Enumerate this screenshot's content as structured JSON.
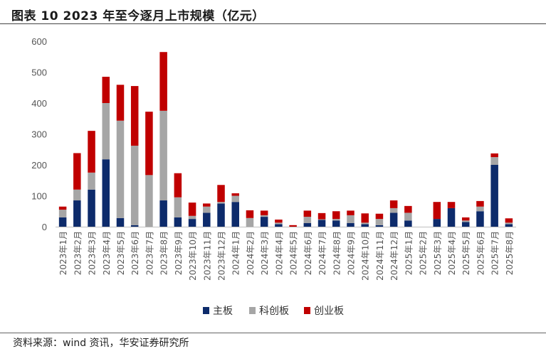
{
  "title": "图表 10 2023 年至今逐月上市规模（亿元）",
  "source": "资料来源：wind 资讯，华安证券研究所",
  "chart_data": {
    "type": "bar",
    "stacked": true,
    "categories": [
      "2023年1月",
      "2023年2月",
      "2023年3月",
      "2023年4月",
      "2023年5月",
      "2023年6月",
      "2023年7月",
      "2023年8月",
      "2023年9月",
      "2023年10月",
      "2023年11月",
      "2023年12月",
      "2024年1月",
      "2024年2月",
      "2024年3月",
      "2024年4月",
      "2024年5月",
      "2024年6月",
      "2024年7月",
      "2024年8月",
      "2024年9月",
      "2024年10月",
      "2024年11月",
      "2024年12月",
      "2025年1月",
      "2025年2月",
      "2025年3月",
      "2025年4月",
      "2025年5月",
      "2025年6月",
      "2025年7月",
      "2025年8月"
    ],
    "series": [
      {
        "name": "主板",
        "color": "#0d2b6b",
        "values": [
          30,
          85,
          120,
          218,
          28,
          5,
          0,
          85,
          30,
          25,
          45,
          75,
          80,
          0,
          32,
          8,
          0,
          12,
          22,
          20,
          12,
          8,
          5,
          45,
          20,
          0,
          25,
          60,
          15,
          50,
          200,
          8
        ]
      },
      {
        "name": "科创板",
        "color": "#a6a6a6",
        "values": [
          25,
          35,
          55,
          182,
          315,
          257,
          167,
          290,
          65,
          10,
          20,
          5,
          20,
          28,
          5,
          5,
          0,
          20,
          2,
          5,
          25,
          5,
          20,
          15,
          25,
          0,
          0,
          0,
          5,
          15,
          25,
          5
        ]
      },
      {
        "name": "创业板",
        "color": "#c00000",
        "values": [
          10,
          118,
          135,
          85,
          116,
          193,
          205,
          190,
          78,
          43,
          10,
          55,
          8,
          25,
          15,
          10,
          5,
          20,
          20,
          25,
          15,
          30,
          17,
          25,
          22,
          0,
          55,
          20,
          10,
          18,
          12,
          14
        ]
      }
    ],
    "ylim": [
      0,
      600
    ],
    "yticks": [
      0,
      100,
      200,
      300,
      400,
      500,
      600
    ],
    "legend_position": "bottom"
  }
}
